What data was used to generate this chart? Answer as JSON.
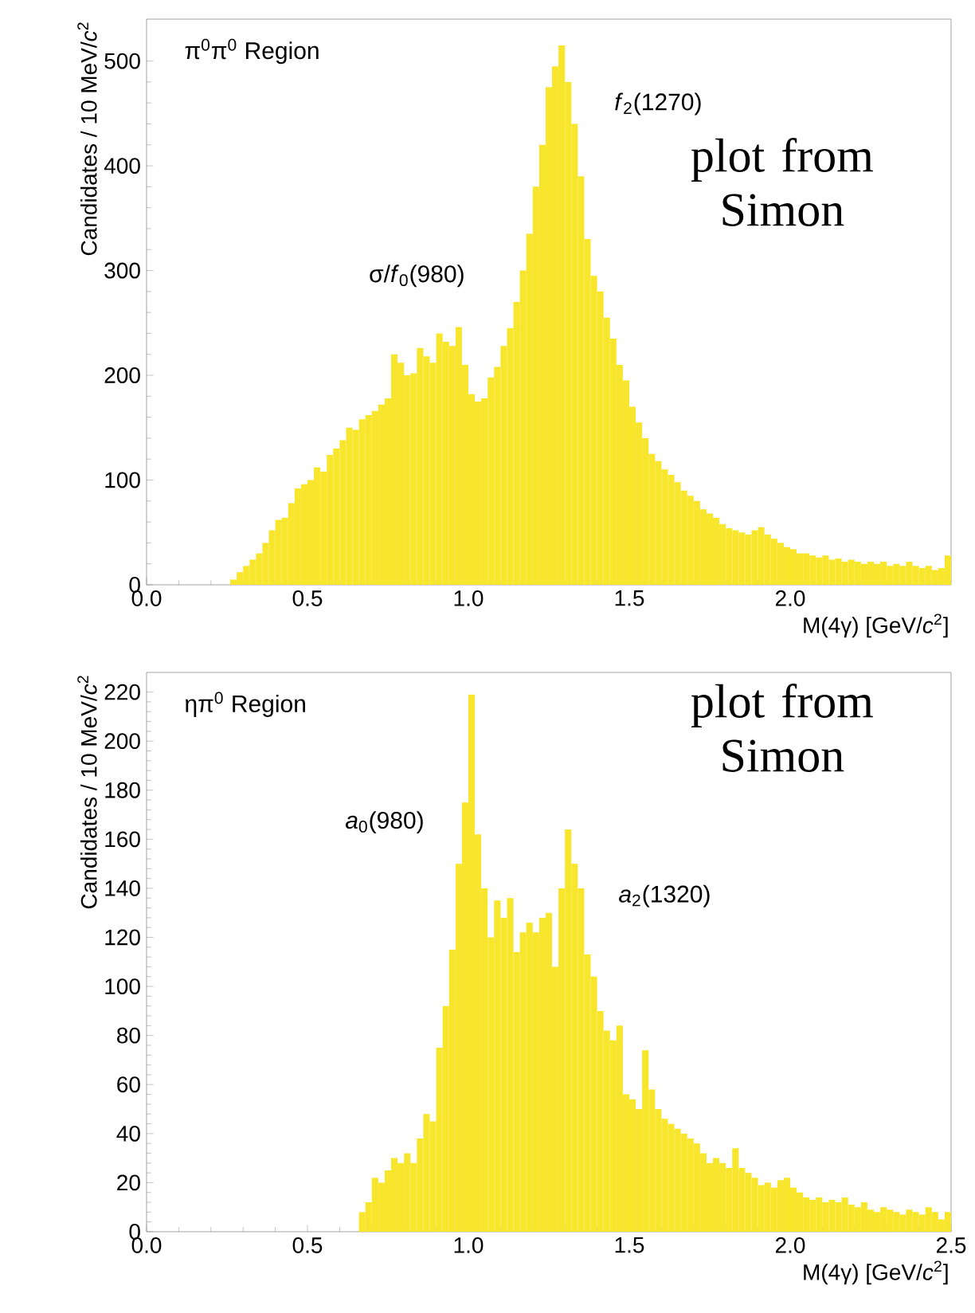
{
  "chart_data": [
    {
      "type": "histogram",
      "title": "π$^{0}$π$^{0}$ Region",
      "xlabel": "M(4γ) [GeV/*c*$^{2}$]",
      "ylabel": "Candidates / 10 MeV/*c*$^{2}$",
      "color": "#f7e62c",
      "bins": [
        0,
        0.02,
        0.04,
        0.06,
        0.08,
        0.1,
        0.12,
        0.14,
        0.16,
        0.18,
        0.2,
        0.22,
        0.24,
        0.26,
        0.28,
        0.3,
        0.32,
        0.34,
        0.36,
        0.38,
        0.4,
        0.42,
        0.44,
        0.46,
        0.48,
        0.5,
        0.52,
        0.54,
        0.56,
        0.58,
        0.6,
        0.62,
        0.64,
        0.66,
        0.68,
        0.7,
        0.72,
        0.74,
        0.76,
        0.78,
        0.8,
        0.82,
        0.84,
        0.86,
        0.88,
        0.9,
        0.92,
        0.94,
        0.96,
        0.98,
        1.0,
        1.02,
        1.04,
        1.06,
        1.08,
        1.1,
        1.12,
        1.14,
        1.16,
        1.18,
        1.2,
        1.22,
        1.24,
        1.26,
        1.28,
        1.3,
        1.32,
        1.34,
        1.36,
        1.38,
        1.4,
        1.42,
        1.44,
        1.46,
        1.48,
        1.5,
        1.52,
        1.54,
        1.56,
        1.58,
        1.6,
        1.62,
        1.64,
        1.66,
        1.68,
        1.7,
        1.72,
        1.74,
        1.76,
        1.78,
        1.8,
        1.82,
        1.84,
        1.86,
        1.88,
        1.9,
        1.92,
        1.94,
        1.96,
        1.98,
        2.0,
        2.02,
        2.04,
        2.06,
        2.08,
        2.1,
        2.12,
        2.14,
        2.16,
        2.18,
        2.2,
        2.22,
        2.24,
        2.26,
        2.28,
        2.3,
        2.32,
        2.34,
        2.36,
        2.38,
        2.4,
        2.42,
        2.44,
        2.46,
        2.48,
        2.5
      ],
      "values": [
        0,
        0,
        0,
        0,
        0,
        0,
        0,
        0,
        0,
        0,
        0,
        0,
        0,
        5,
        12,
        18,
        24,
        30,
        40,
        52,
        62,
        64,
        78,
        92,
        96,
        100,
        112,
        108,
        124,
        130,
        138,
        150,
        148,
        158,
        162,
        166,
        172,
        178,
        220,
        212,
        200,
        202,
        226,
        218,
        212,
        240,
        232,
        228,
        246,
        210,
        182,
        175,
        178,
        198,
        208,
        228,
        245,
        270,
        300,
        335,
        380,
        420,
        475,
        495,
        515,
        480,
        440,
        390,
        330,
        295,
        280,
        255,
        235,
        210,
        195,
        170,
        155,
        140,
        125,
        118,
        110,
        105,
        98,
        90,
        85,
        80,
        72,
        68,
        64,
        58,
        54,
        52,
        50,
        48,
        52,
        55,
        48,
        44,
        40,
        36,
        34,
        30,
        30,
        28,
        26,
        28,
        24,
        25,
        22,
        24,
        22,
        20,
        22,
        20,
        22,
        18,
        20,
        18,
        22,
        18,
        16,
        18,
        14,
        16,
        28
      ],
      "xlim": [
        0,
        2.5
      ],
      "ylim": [
        0,
        540
      ],
      "xticks": [
        {
          "value": 0,
          "label": "0.0"
        },
        {
          "value": 0.5,
          "label": "0.5"
        },
        {
          "value": 1,
          "label": "1.0"
        },
        {
          "value": 1.5,
          "label": "1.5"
        },
        {
          "value": 2,
          "label": "2.0"
        }
      ],
      "yticks": [
        0,
        100,
        200,
        300,
        400,
        500
      ],
      "annotations": [
        "σ/*f*$_{0}$(980)",
        "*f*$_{2}$(1270)",
        "plot from Simon"
      ]
    },
    {
      "type": "histogram",
      "title": "ηπ$^{0}$ Region",
      "xlabel": "M(4γ) [GeV/*c*$^{2}$]",
      "ylabel": "Candidates / 10 MeV/*c*$^{2}$",
      "color": "#f7e62c",
      "bins": [
        0,
        0.02,
        0.04,
        0.06,
        0.08,
        0.1,
        0.12,
        0.14,
        0.16,
        0.18,
        0.2,
        0.22,
        0.24,
        0.26,
        0.28,
        0.3,
        0.32,
        0.34,
        0.36,
        0.38,
        0.4,
        0.42,
        0.44,
        0.46,
        0.48,
        0.5,
        0.52,
        0.54,
        0.56,
        0.58,
        0.6,
        0.62,
        0.64,
        0.66,
        0.68,
        0.7,
        0.72,
        0.74,
        0.76,
        0.78,
        0.8,
        0.82,
        0.84,
        0.86,
        0.88,
        0.9,
        0.92,
        0.94,
        0.96,
        0.98,
        1.0,
        1.02,
        1.04,
        1.06,
        1.08,
        1.1,
        1.12,
        1.14,
        1.16,
        1.18,
        1.2,
        1.22,
        1.24,
        1.26,
        1.28,
        1.3,
        1.32,
        1.34,
        1.36,
        1.38,
        1.4,
        1.42,
        1.44,
        1.46,
        1.48,
        1.5,
        1.52,
        1.54,
        1.56,
        1.58,
        1.6,
        1.62,
        1.64,
        1.66,
        1.68,
        1.7,
        1.72,
        1.74,
        1.76,
        1.78,
        1.8,
        1.82,
        1.84,
        1.86,
        1.88,
        1.9,
        1.92,
        1.94,
        1.96,
        1.98,
        2.0,
        2.02,
        2.04,
        2.06,
        2.08,
        2.1,
        2.12,
        2.14,
        2.16,
        2.18,
        2.2,
        2.22,
        2.24,
        2.26,
        2.28,
        2.3,
        2.32,
        2.34,
        2.36,
        2.38,
        2.4,
        2.42,
        2.44,
        2.46,
        2.48,
        2.5
      ],
      "values": [
        0,
        0,
        0,
        0,
        0,
        0,
        0,
        0,
        0,
        0,
        0,
        0,
        0,
        0,
        0,
        0,
        0,
        0,
        0,
        0,
        0,
        0,
        0,
        0,
        0,
        0,
        0,
        0,
        0,
        0,
        0,
        0,
        0,
        8,
        12,
        22,
        20,
        25,
        30,
        28,
        32,
        28,
        38,
        48,
        45,
        75,
        92,
        115,
        150,
        175,
        219,
        162,
        140,
        120,
        135,
        128,
        136,
        114,
        122,
        126,
        122,
        128,
        130,
        108,
        140,
        164,
        150,
        140,
        113,
        104,
        90,
        82,
        78,
        84,
        56,
        54,
        50,
        74,
        58,
        50,
        46,
        44,
        42,
        40,
        38,
        36,
        32,
        28,
        30,
        28,
        26,
        34,
        26,
        24,
        22,
        19,
        20,
        18,
        21,
        22,
        18,
        16,
        14,
        13,
        14,
        12,
        13,
        12,
        14,
        11,
        10,
        12,
        9,
        8,
        10,
        9,
        8,
        7,
        9,
        8,
        7,
        10,
        8,
        5,
        8
      ],
      "xlim": [
        0,
        2.5
      ],
      "ylim": [
        0,
        228
      ],
      "xticks": [
        {
          "value": 0,
          "label": "0.0"
        },
        {
          "value": 0.5,
          "label": "0.5"
        },
        {
          "value": 1,
          "label": "1.0"
        },
        {
          "value": 1.5,
          "label": "1.5"
        },
        {
          "value": 2,
          "label": "2.0"
        },
        {
          "value": 2.5,
          "label": "2.5"
        }
      ],
      "yticks": [
        0,
        20,
        40,
        60,
        80,
        100,
        120,
        140,
        160,
        180,
        200,
        220
      ],
      "annotations": [
        "*a*$_{0}$(980)",
        "*a*$_{2}$(1320)",
        "plot from Simon"
      ]
    }
  ]
}
